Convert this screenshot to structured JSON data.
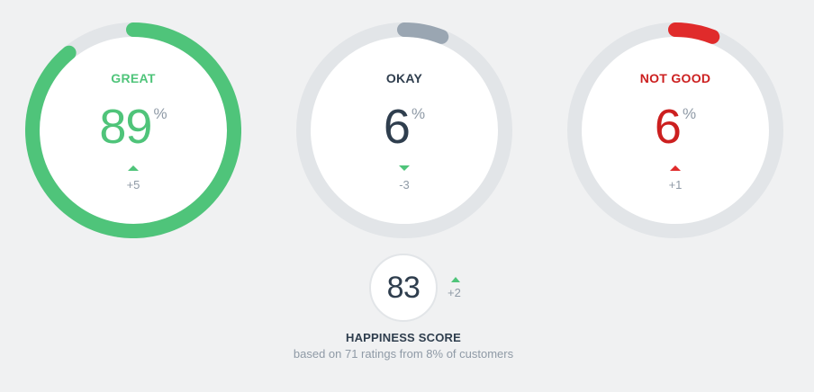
{
  "gauges": [
    {
      "label": "GREAT",
      "value": "89",
      "percent_sign": "%",
      "fraction": 0.89,
      "delta": "+5",
      "trend": "up",
      "color": "#4fc47a",
      "value_color": "#4fc47a",
      "trend_color": "#4fc47a"
    },
    {
      "label": "OKAY",
      "value": "6",
      "percent_sign": "%",
      "fraction": 0.06,
      "delta": "-3",
      "trend": "down",
      "color": "#9aa6b2",
      "value_color": "#2f3e4e",
      "trend_color": "#4fc47a"
    },
    {
      "label": "NOT GOOD",
      "value": "6",
      "percent_sign": "%",
      "fraction": 0.06,
      "delta": "+1",
      "trend": "up",
      "color": "#e02b2b",
      "value_color": "#cc1f1f",
      "trend_color": "#e02b2b"
    }
  ],
  "track_color": "#e2e5e8",
  "happiness": {
    "score": "83",
    "delta": "+2",
    "trend": "up",
    "title": "HAPPINESS SCORE",
    "subtitle": "based on 71 ratings from 8% of customers"
  }
}
